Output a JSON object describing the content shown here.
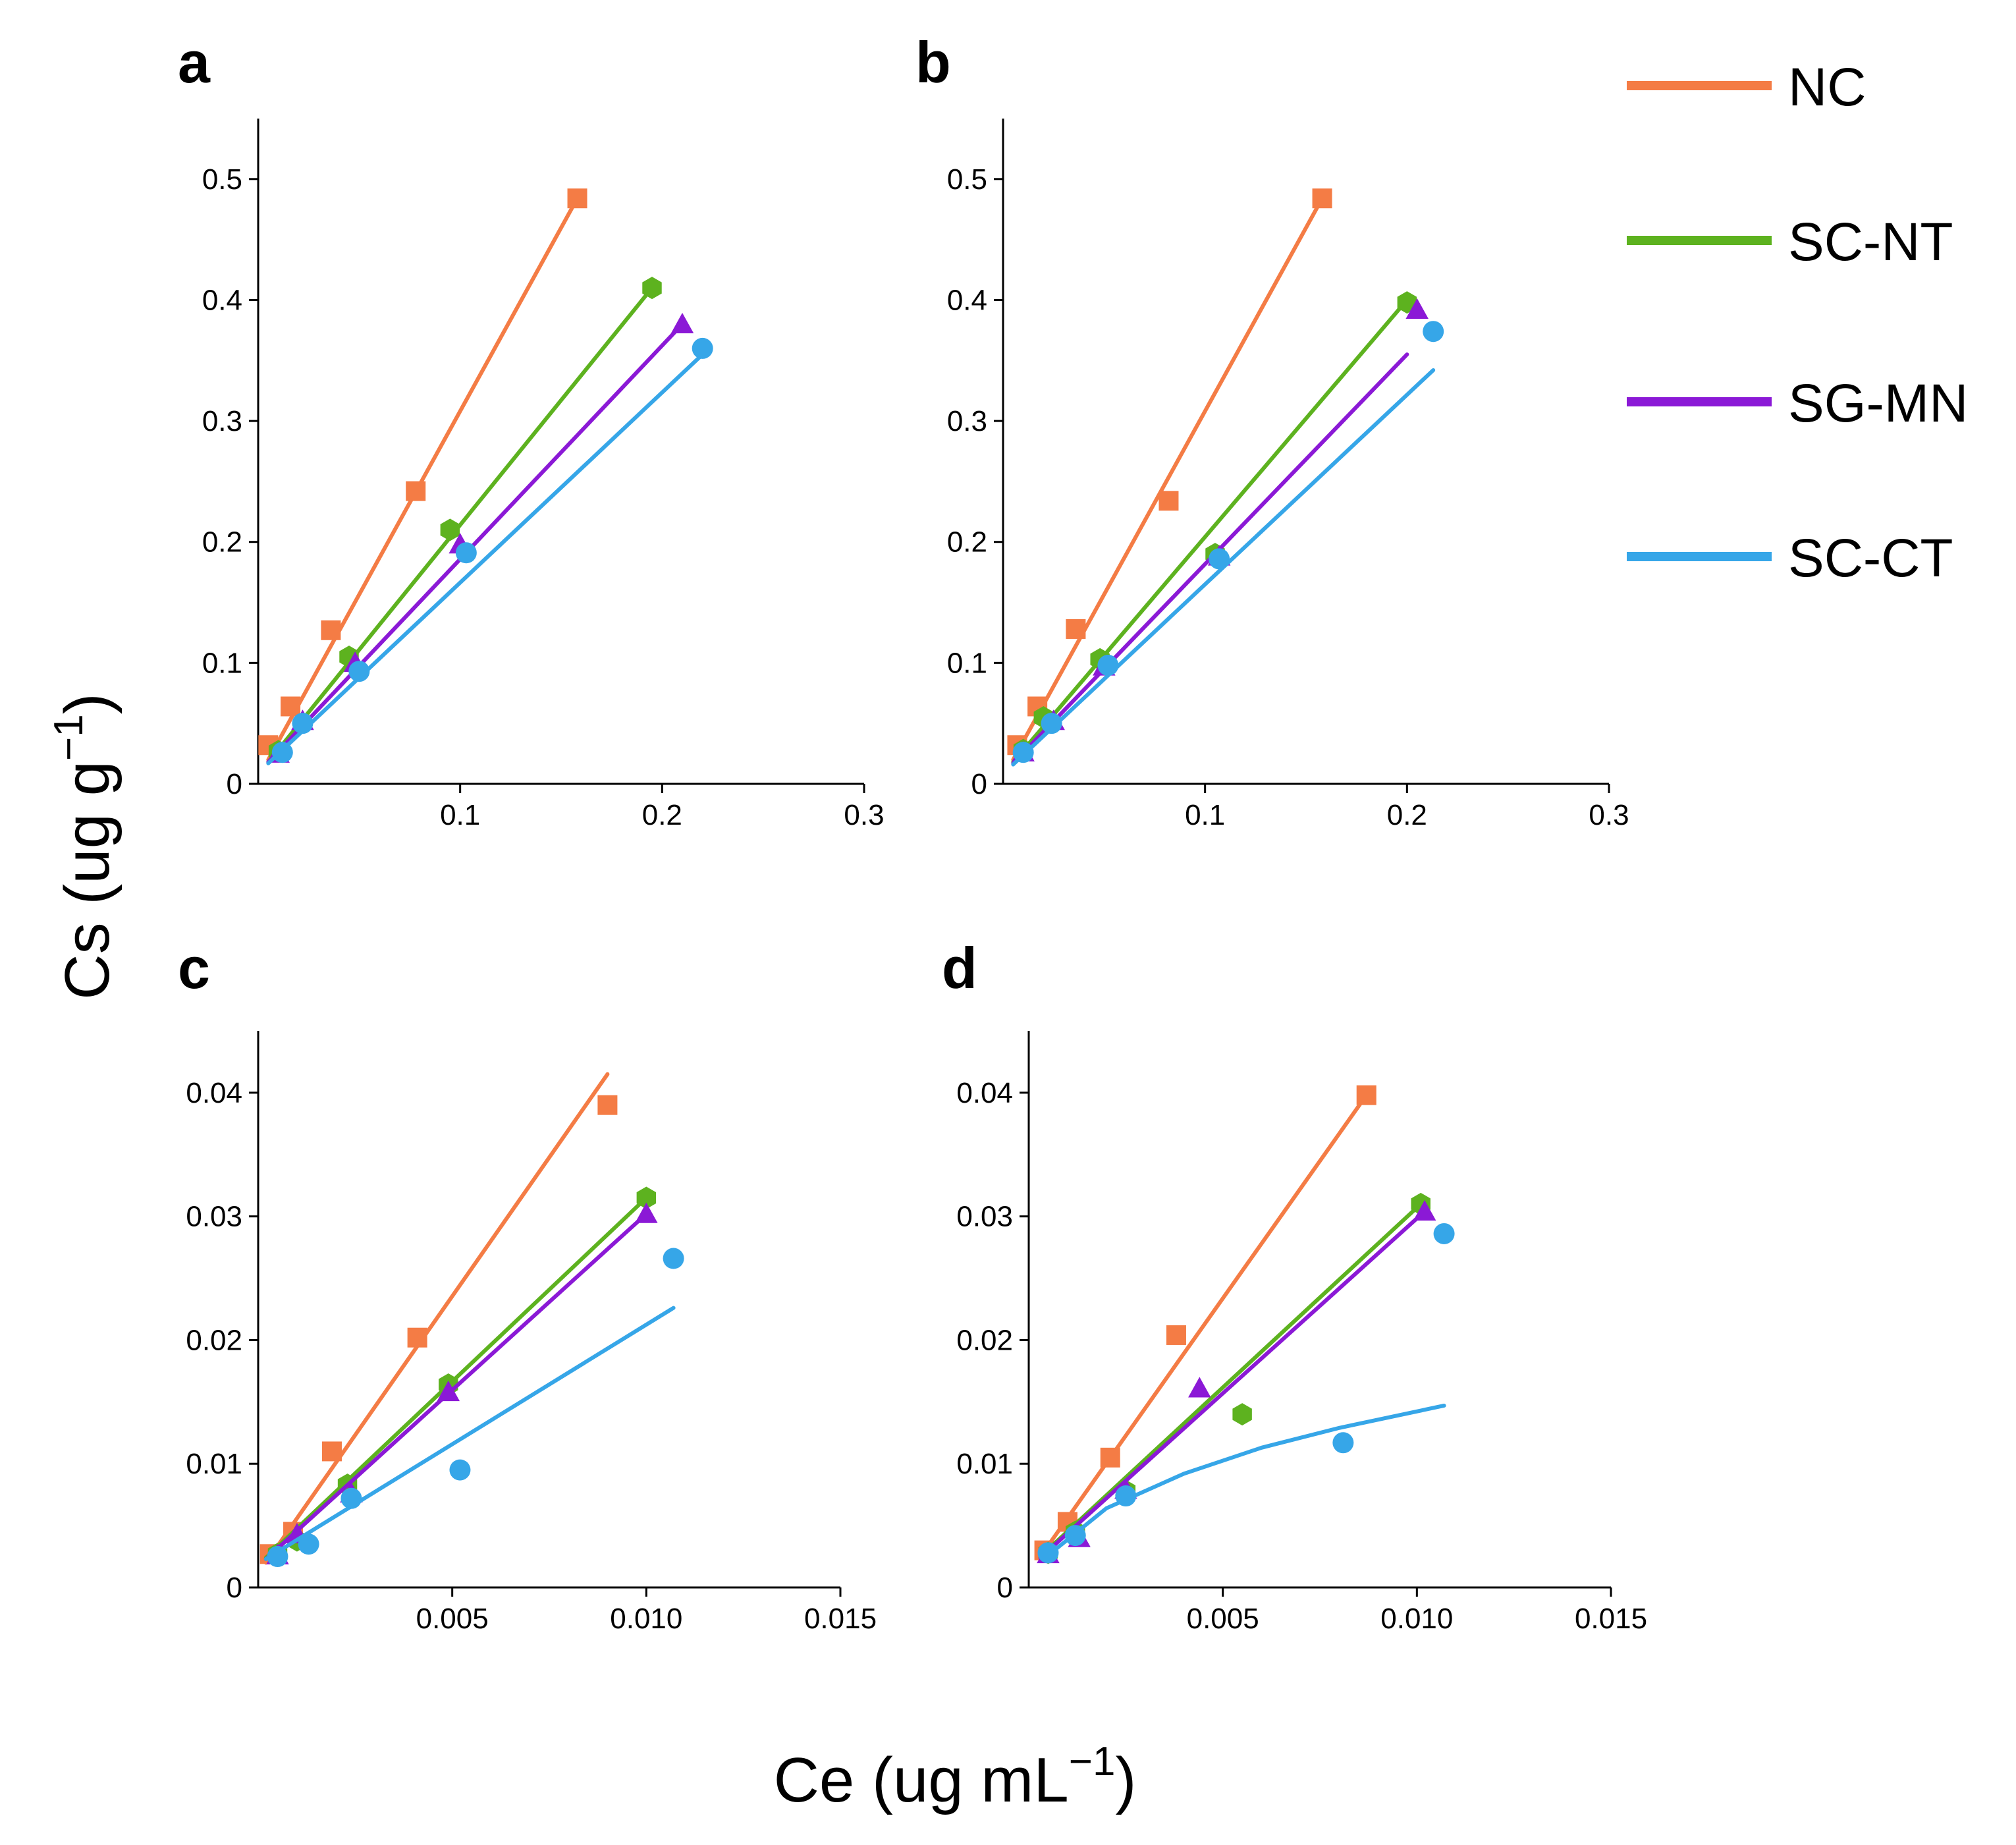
{
  "figure": {
    "ylabel": "Cs (ug g",
    "ylabel_sup": "−1",
    "ylabel_close": ")",
    "xlabel": "Ce (ug mL",
    "xlabel_sup": "−1",
    "xlabel_close": ")"
  },
  "legend": [
    {
      "name": "NC",
      "color": "#F47C45"
    },
    {
      "name": "SC-NT",
      "color": "#5DB21F"
    },
    {
      "name": "SG-MN",
      "color": "#8B19D6"
    },
    {
      "name": "SC-CT",
      "color": "#36A6E8"
    }
  ],
  "chart_data": [
    {
      "type": "scatter",
      "label": "a",
      "xlim": [
        0,
        0.3
      ],
      "ylim": [
        0,
        0.55
      ],
      "xticks": [
        0.1,
        0.2,
        0.3
      ],
      "xtick_labels": [
        "0.1",
        "0.2",
        "0.3"
      ],
      "yticks": [
        0,
        0.1,
        0.2,
        0.3,
        0.4,
        0.5
      ],
      "ytick_labels": [
        "0",
        "0.1",
        "0.2",
        "0.3",
        "0.4",
        "0.5"
      ],
      "series": [
        {
          "name": "NC",
          "marker": "square",
          "x": [
            0.005,
            0.016,
            0.036,
            0.078,
            0.158
          ],
          "y": [
            0.032,
            0.064,
            0.127,
            0.242,
            0.484
          ],
          "fit": [
            [
              0.005,
              0.02
            ],
            [
              0.158,
              0.484
            ]
          ]
        },
        {
          "name": "SC-NT",
          "marker": "hexagon",
          "x": [
            0.01,
            0.045,
            0.095,
            0.195
          ],
          "y": [
            0.027,
            0.105,
            0.21,
            0.41
          ],
          "fit": [
            [
              0.005,
              0.018
            ],
            [
              0.195,
              0.41
            ]
          ]
        },
        {
          "name": "SG-MN",
          "marker": "triangle",
          "x": [
            0.01,
            0.022,
            0.048,
            0.1,
            0.21
          ],
          "y": [
            0.025,
            0.052,
            0.1,
            0.198,
            0.38
          ],
          "fit": [
            [
              0.005,
              0.018
            ],
            [
              0.21,
              0.38
            ]
          ]
        },
        {
          "name": "SC-CT",
          "marker": "circle",
          "x": [
            0.012,
            0.022,
            0.05,
            0.103,
            0.22
          ],
          "y": [
            0.026,
            0.05,
            0.093,
            0.191,
            0.36
          ],
          "fit": [
            [
              0.005,
              0.017
            ],
            [
              0.22,
              0.355
            ]
          ]
        }
      ]
    },
    {
      "type": "scatter",
      "label": "b",
      "xlim": [
        0,
        0.3
      ],
      "ylim": [
        0,
        0.55
      ],
      "xticks": [
        0.1,
        0.2,
        0.3
      ],
      "xtick_labels": [
        "0.1",
        "0.2",
        "0.3"
      ],
      "yticks": [
        0,
        0.1,
        0.2,
        0.3,
        0.4,
        0.5
      ],
      "ytick_labels": [
        "0",
        "0.1",
        "0.2",
        "0.3",
        "0.4",
        "0.5"
      ],
      "series": [
        {
          "name": "NC",
          "marker": "square",
          "x": [
            0.007,
            0.017,
            0.036,
            0.082,
            0.158
          ],
          "y": [
            0.032,
            0.064,
            0.128,
            0.234,
            0.484
          ],
          "fit": [
            [
              0.005,
              0.02
            ],
            [
              0.158,
              0.484
            ]
          ]
        },
        {
          "name": "SC-NT",
          "marker": "hexagon",
          "x": [
            0.01,
            0.02,
            0.048,
            0.105,
            0.2
          ],
          "y": [
            0.028,
            0.055,
            0.103,
            0.19,
            0.398
          ],
          "fit": [
            [
              0.005,
              0.018
            ],
            [
              0.2,
              0.4
            ]
          ]
        },
        {
          "name": "SG-MN",
          "marker": "triangle",
          "x": [
            0.01,
            0.025,
            0.05,
            0.107,
            0.205
          ],
          "y": [
            0.026,
            0.052,
            0.097,
            0.188,
            0.392
          ],
          "fit": [
            [
              0.005,
              0.017
            ],
            [
              0.2,
              0.355
            ]
          ]
        },
        {
          "name": "SC-CT",
          "marker": "circle",
          "x": [
            0.01,
            0.024,
            0.052,
            0.107,
            0.213
          ],
          "y": [
            0.026,
            0.05,
            0.098,
            0.186,
            0.374
          ],
          "fit": [
            [
              0.005,
              0.016
            ],
            [
              0.213,
              0.342
            ]
          ]
        }
      ]
    },
    {
      "type": "scatter",
      "label": "c",
      "xlim": [
        0,
        0.015
      ],
      "ylim": [
        0,
        0.045
      ],
      "xticks": [
        0.005,
        0.01,
        0.015
      ],
      "xtick_labels": [
        "0.005",
        "0.010",
        "0.015"
      ],
      "yticks": [
        0,
        0.01,
        0.02,
        0.03,
        0.04
      ],
      "ytick_labels": [
        "0",
        "0.01",
        "0.02",
        "0.03",
        "0.04"
      ],
      "series": [
        {
          "name": "NC",
          "marker": "square",
          "x": [
            0.0003,
            0.0009,
            0.0019,
            0.0041,
            0.009
          ],
          "y": [
            0.0027,
            0.0045,
            0.011,
            0.0202,
            0.039
          ],
          "fit": [
            [
              0.0002,
              0.002
            ],
            [
              0.009,
              0.0415
            ]
          ]
        },
        {
          "name": "SC-NT",
          "marker": "hexagon",
          "x": [
            0.0005,
            0.001,
            0.0023,
            0.0049,
            0.01
          ],
          "y": [
            0.0027,
            0.0038,
            0.0083,
            0.0164,
            0.0315
          ],
          "fit": [
            [
              0.0002,
              0.0024
            ],
            [
              0.01,
              0.0315
            ]
          ]
        },
        {
          "name": "SG-MN",
          "marker": "triangle",
          "x": [
            0.0005,
            0.001,
            0.0024,
            0.0049,
            0.01
          ],
          "y": [
            0.0026,
            0.0043,
            0.0076,
            0.0158,
            0.0302
          ],
          "fit": [
            [
              0.0002,
              0.0023
            ],
            [
              0.01,
              0.0302
            ]
          ]
        },
        {
          "name": "SC-CT",
          "marker": "circle",
          "x": [
            0.0005,
            0.0013,
            0.0024,
            0.0052,
            0.0107
          ],
          "y": [
            0.0025,
            0.0035,
            0.0072,
            0.0095,
            0.0266
          ],
          "fit": [
            [
              0.0002,
              0.0023
            ],
            [
              0.0107,
              0.0226
            ]
          ]
        }
      ]
    },
    {
      "type": "scatter",
      "label": "d",
      "xlim": [
        0,
        0.015
      ],
      "ylim": [
        0,
        0.045
      ],
      "xticks": [
        0.005,
        0.01,
        0.015
      ],
      "xtick_labels": [
        "0.005",
        "0.010",
        "0.015"
      ],
      "yticks": [
        0,
        0.01,
        0.02,
        0.03,
        0.04
      ],
      "ytick_labels": [
        "0",
        "0.01",
        "0.02",
        "0.03",
        "0.04"
      ],
      "series": [
        {
          "name": "NC",
          "marker": "square",
          "x": [
            0.0004,
            0.001,
            0.0021,
            0.0038,
            0.0087
          ],
          "y": [
            0.003,
            0.0053,
            0.0105,
            0.0204,
            0.0398
          ],
          "fit": [
            [
              0.0003,
              0.0025
            ],
            [
              0.0087,
              0.0398
            ]
          ]
        },
        {
          "name": "SC-NT",
          "marker": "hexagon",
          "x": [
            0.0005,
            0.0012,
            0.0025,
            0.0055,
            0.0101
          ],
          "y": [
            0.0028,
            0.0045,
            0.0078,
            0.014,
            0.031
          ],
          "fit": [
            [
              0.0003,
              0.0025
            ],
            [
              0.0101,
              0.031
            ]
          ]
        },
        {
          "name": "SG-MN",
          "marker": "triangle",
          "x": [
            0.0005,
            0.0013,
            0.0025,
            0.0044,
            0.0102
          ],
          "y": [
            0.0027,
            0.004,
            0.0079,
            0.0161,
            0.0304
          ],
          "fit": [
            [
              0.0003,
              0.0024
            ],
            [
              0.0102,
              0.0304
            ]
          ]
        },
        {
          "name": "SC-CT",
          "marker": "circle",
          "x": [
            0.0005,
            0.0012,
            0.0025,
            0.0081,
            0.0107
          ],
          "y": [
            0.0028,
            0.0042,
            0.0074,
            0.0117,
            0.0286
          ],
          "curve": [
            [
              0.0005,
              0.0026
            ],
            [
              0.002,
              0.0064
            ],
            [
              0.004,
              0.0092
            ],
            [
              0.006,
              0.0113
            ],
            [
              0.008,
              0.0129
            ],
            [
              0.0107,
              0.0147
            ]
          ]
        }
      ]
    }
  ]
}
